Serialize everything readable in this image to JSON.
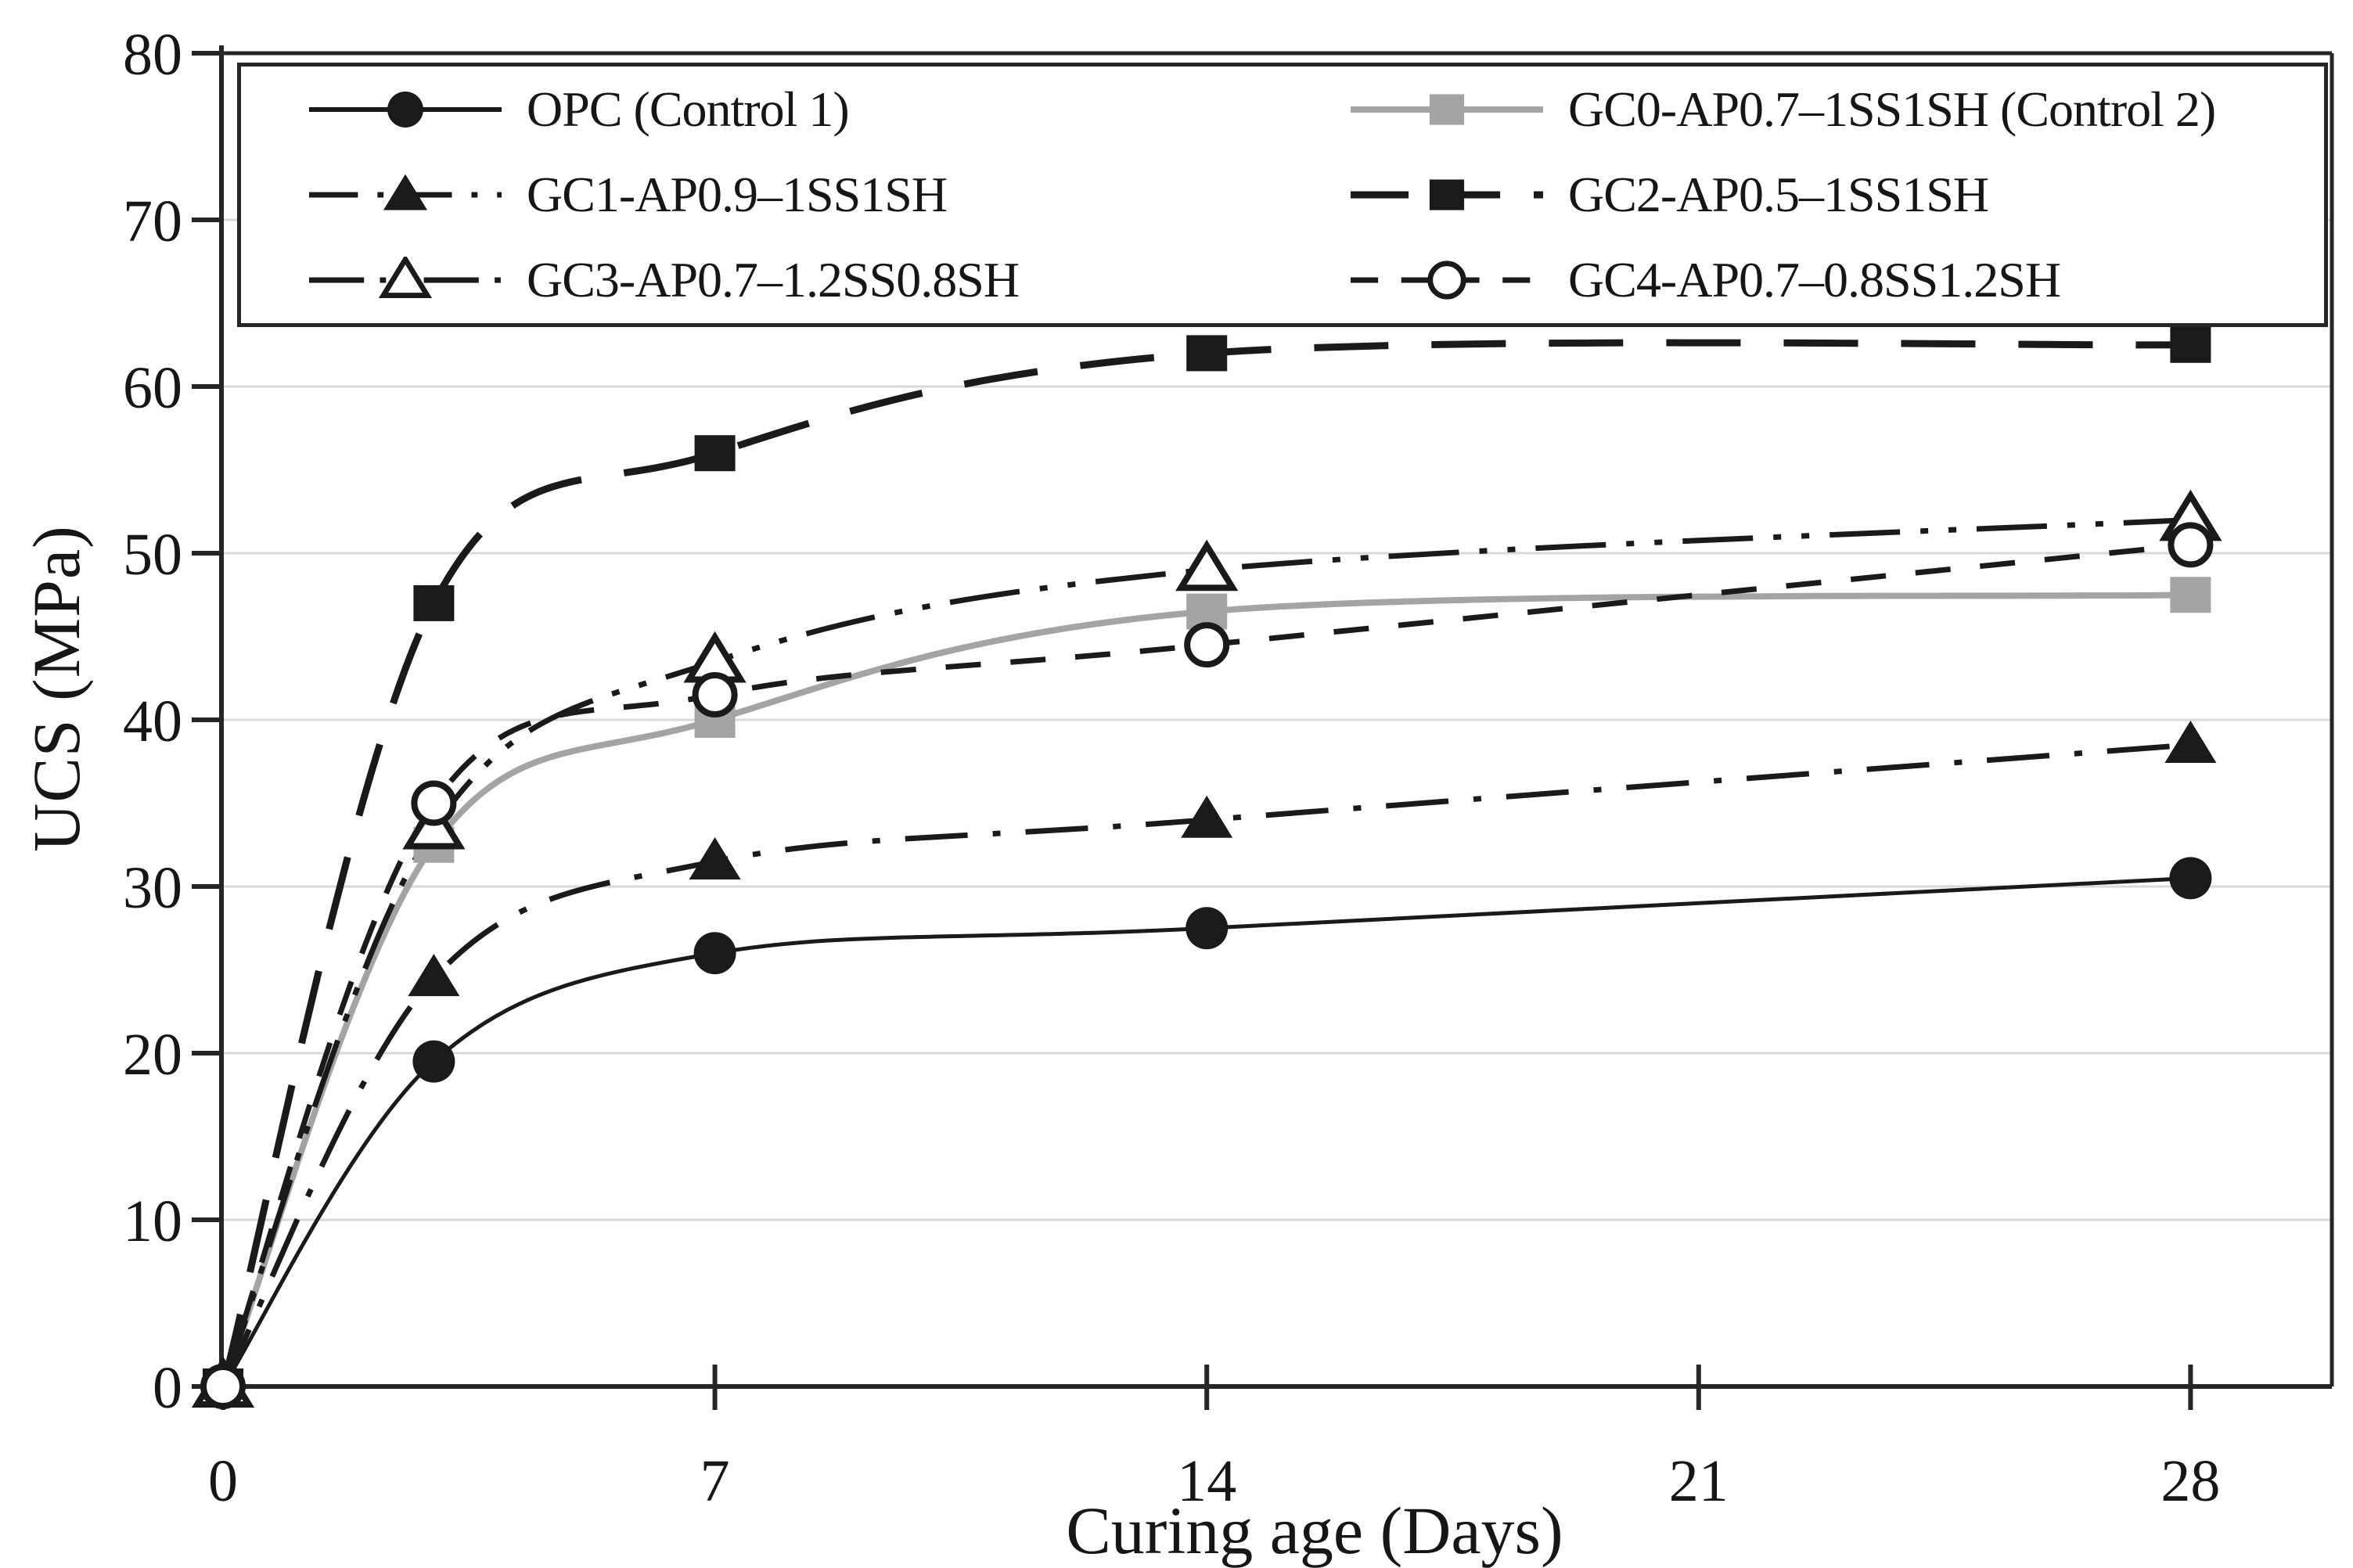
{
  "chart_data": {
    "type": "line",
    "title": "",
    "xlabel": "Curing age (Days)",
    "ylabel": "UCS (MPa)",
    "x": [
      0,
      3,
      7,
      14,
      28
    ],
    "x_ticks": [
      0,
      7,
      14,
      21,
      28
    ],
    "y_ticks": [
      0,
      10,
      20,
      30,
      40,
      50,
      60,
      70,
      80
    ],
    "xlim": [
      0,
      30
    ],
    "ylim": [
      0,
      80
    ],
    "grid": "horizontal-light-gray",
    "legend_position": "top-inside-box",
    "colors": {
      "black": "#1a1a1a",
      "gray": "#a4a4a4",
      "gridline": "#d9d9d9",
      "frame": "#262626"
    },
    "series": [
      {
        "name": "OPC (Control 1)",
        "values": [
          0,
          19.5,
          26,
          27.5,
          30.5
        ],
        "color": "#1a1a1a",
        "line_style": "solid",
        "line_width": 5,
        "marker": "circle",
        "marker_fill": "filled"
      },
      {
        "name": "GC0-AP0.7–1SS1SH (Control 2)",
        "values": [
          0,
          32.5,
          40,
          46.5,
          47.5
        ],
        "color": "#a4a4a4",
        "line_style": "solid",
        "line_width": 8,
        "marker": "square",
        "marker_fill": "filled"
      },
      {
        "name": "GC1-AP0.9–1SS1SH",
        "values": [
          0,
          24.5,
          31.5,
          34,
          38.5
        ],
        "color": "#1a1a1a",
        "line_style": "dash-dot",
        "line_width": 7,
        "marker": "triangle",
        "marker_fill": "filled"
      },
      {
        "name": "GC2-AP0.5–1SS1SH",
        "values": [
          0,
          47,
          56,
          62,
          62.5
        ],
        "color": "#1a1a1a",
        "line_style": "long-dash",
        "line_width": 9,
        "marker": "square",
        "marker_fill": "filled"
      },
      {
        "name": "GC3-AP0.7–1.2SS0.8SH",
        "values": [
          0,
          33.5,
          43.5,
          49,
          52
        ],
        "color": "#1a1a1a",
        "line_style": "dash-dot-dot",
        "line_width": 7,
        "marker": "triangle",
        "marker_fill": "open"
      },
      {
        "name": "GC4-AP0.7–0.8SS1.2SH",
        "values": [
          0,
          35,
          41.5,
          44.5,
          50.5
        ],
        "color": "#1a1a1a",
        "line_style": "dash",
        "line_width": 7,
        "marker": "circle",
        "marker_fill": "open"
      }
    ]
  }
}
